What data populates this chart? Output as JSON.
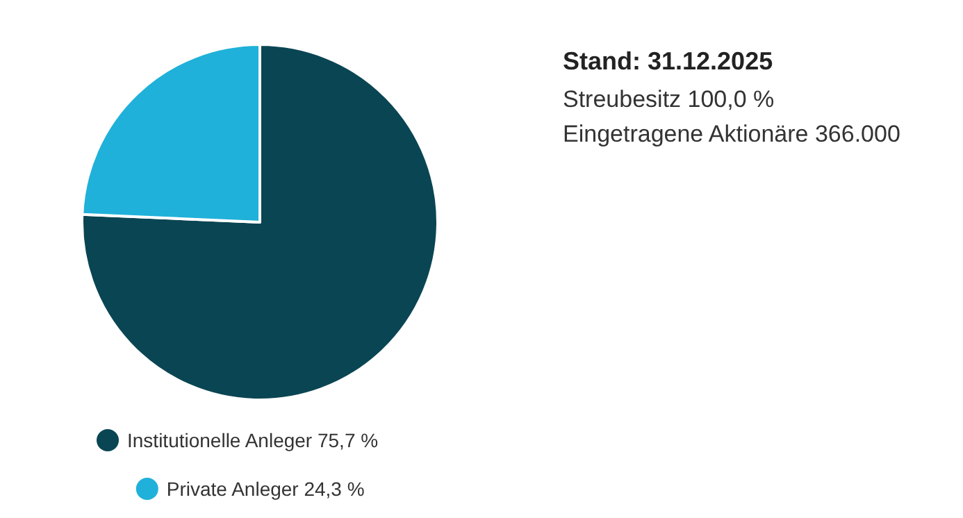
{
  "chart_data": {
    "type": "pie",
    "title": "Stand: 31.12.2025",
    "annotations": [
      "Streubesitz 100,0 %",
      "Eingetragene Aktionäre 366.000"
    ],
    "categories": [
      "Institutionelle Anleger",
      "Private Anleger"
    ],
    "values": [
      75.7,
      24.3
    ],
    "value_labels": [
      "75,7 %",
      "24,3 %"
    ],
    "colors": [
      "#0a4553",
      "#1fb1d9"
    ],
    "legend": "bottom"
  }
}
